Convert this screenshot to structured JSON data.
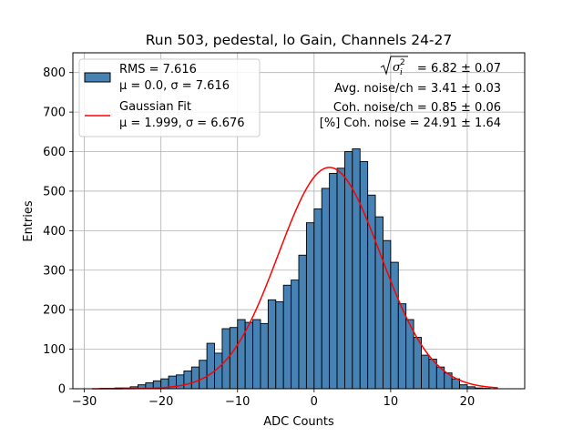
{
  "chart_data": {
    "type": "bar",
    "title": "Run 503, pedestal, lo Gain, Channels 24-27",
    "xlabel": "ADC Counts",
    "ylabel": "Entries",
    "xlim": [
      -31.5,
      27.5
    ],
    "ylim": [
      0,
      850
    ],
    "grid": true,
    "xticks": [
      -30,
      -20,
      -10,
      0,
      10,
      20
    ],
    "xtick_labels": [
      "−30",
      "−20",
      "−10",
      "0",
      "10",
      "20"
    ],
    "yticks": [
      0,
      100,
      200,
      300,
      400,
      500,
      600,
      700,
      800
    ],
    "ytick_labels": [
      "0",
      "100",
      "200",
      "300",
      "400",
      "500",
      "600",
      "700",
      "800"
    ],
    "histogram": {
      "bin_start": -29,
      "bin_width": 1,
      "counts": [
        0,
        1,
        1,
        2,
        2,
        5,
        10,
        15,
        20,
        25,
        32,
        35,
        45,
        55,
        72,
        115,
        90,
        152,
        155,
        175,
        168,
        175,
        165,
        225,
        220,
        262,
        275,
        338,
        420,
        455,
        507,
        545,
        558,
        600,
        607,
        575,
        490,
        435,
        375,
        320,
        215,
        175,
        130,
        85,
        75,
        55,
        40,
        25,
        10,
        5,
        2,
        1,
        0
      ],
      "fill_color": "#4682b4",
      "edge_color": "#000000"
    },
    "series": [
      {
        "name": "Gaussian Fit",
        "type": "line",
        "mu": 1.999,
        "sigma": 6.676,
        "amplitude": 560,
        "x_range": [
          -29,
          24
        ],
        "color": "#ff0000"
      }
    ],
    "legend": {
      "position": "top-left",
      "entries": [
        {
          "type": "patch",
          "line1": "RMS = 7.616",
          "line2": "μ = 0.0, σ = 7.616",
          "color": "#4682b4"
        },
        {
          "type": "line",
          "line1": "Gaussian Fit",
          "line2": "μ = 1.999, σ = 6.676",
          "color": "#ff0000"
        }
      ]
    },
    "annotations": {
      "sigma_label_value": "= 6.82 ± 0.07",
      "avg_noise": "Avg. noise/ch = 3.41 ± 0.03",
      "coh_noise": "Coh. noise/ch = 0.85 ± 0.06",
      "pct_coh_noise": "[%] Coh. noise = 24.91 ± 1.64"
    }
  }
}
